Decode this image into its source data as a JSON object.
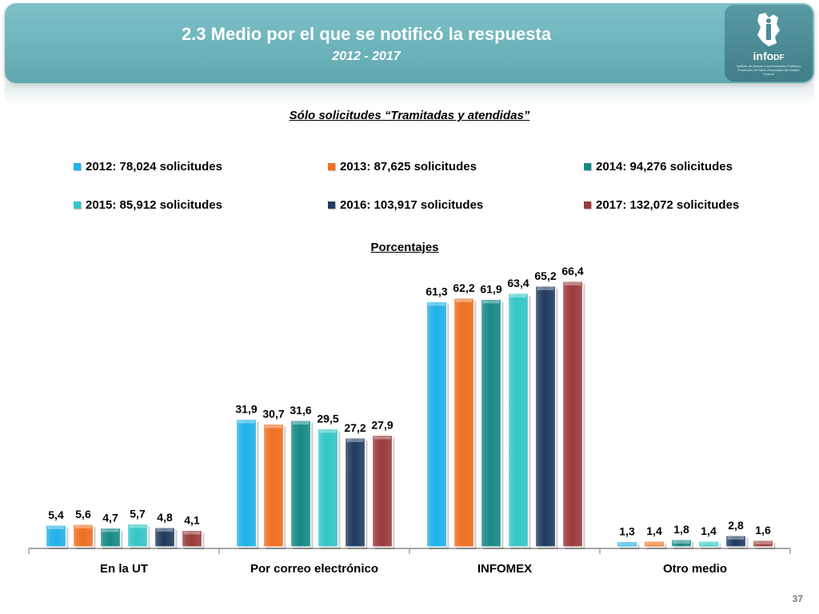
{
  "header": {
    "title": "2.3 Medio por el que se notificó la respuesta",
    "subtitle": "2012 - 2017",
    "logo_text": "infoDF",
    "logo_main": "info",
    "logo_suffix": "DF",
    "logo_tagline": "Instituto de Acceso a la Información Pública y Protección de Datos Personales del Distrito Federal"
  },
  "section_heading": "Sólo solicitudes “Tramitadas y atendidas”",
  "page_number": "37",
  "chart_data": {
    "type": "bar",
    "subtitle": "Porcentajes",
    "categories": [
      "En la UT",
      "Por correo electrónico",
      "INFOMEX",
      "Otro medio"
    ],
    "series": [
      {
        "name": "2012: 78,024 solicitudes",
        "color": "#1fb2ea",
        "values": [
          5.4,
          31.9,
          61.3,
          1.3
        ],
        "labels": [
          "5,4",
          "31,9",
          "61,3",
          "1,3"
        ]
      },
      {
        "name": "2013: 87,625 solicitudes",
        "color": "#f07020",
        "values": [
          5.6,
          30.7,
          62.2,
          1.4
        ],
        "labels": [
          "5,6",
          "30,7",
          "62,2",
          "1,4"
        ]
      },
      {
        "name": "2014: 94,276 solicitudes",
        "color": "#168a86",
        "values": [
          4.7,
          31.6,
          61.9,
          1.8
        ],
        "labels": [
          "4,7",
          "31,6",
          "61,9",
          "1,8"
        ]
      },
      {
        "name": "2015: 85,912 solicitudes",
        "color": "#32c8c8",
        "values": [
          5.7,
          29.5,
          63.4,
          1.4
        ],
        "labels": [
          "5,7",
          "29,5",
          "63,4",
          "1,4"
        ]
      },
      {
        "name": "2016: 103,917 solicitudes",
        "color": "#1f3b60",
        "values": [
          4.8,
          27.2,
          65.2,
          2.8
        ],
        "labels": [
          "4,8",
          "27,2",
          "65,2",
          "2,8"
        ]
      },
      {
        "name": "2017: 132,072 solicitudes",
        "color": "#9b3a3c",
        "values": [
          4.1,
          27.9,
          66.4,
          1.6
        ],
        "labels": [
          "4,1",
          "27,9",
          "66,4",
          "1,6"
        ]
      }
    ],
    "ylim": [
      0,
      70
    ],
    "grid": false,
    "legend_position": "top"
  }
}
